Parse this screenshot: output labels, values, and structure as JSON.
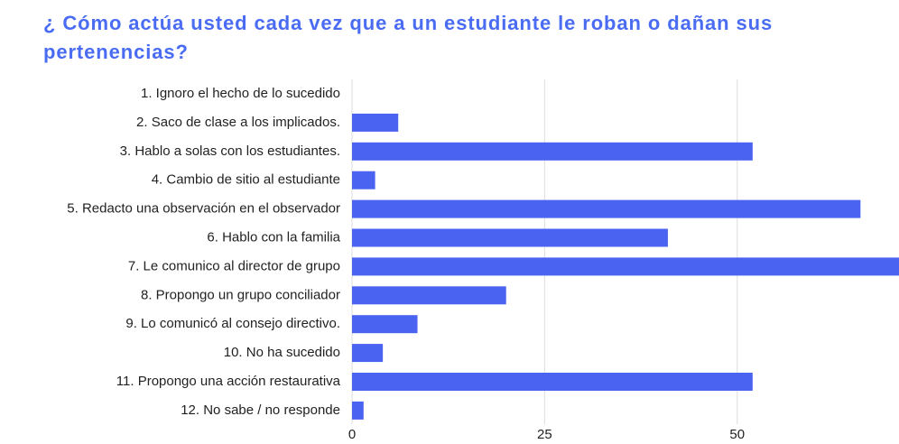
{
  "chart_data": {
    "type": "bar",
    "orientation": "horizontal",
    "title": "¿ Cómo actúa usted cada vez que a un estudiante le roban o dañan sus pertenencias?",
    "categories": [
      "1. Ignoro el hecho de lo sucedido",
      "2. Saco de clase a los implicados.",
      "3. Hablo a solas con los estudiantes.",
      "4. Cambio de sitio al estudiante",
      "5. Redacto una observación en el observador",
      "6. Hablo con la familia",
      "7. Le comunico al director de grupo",
      "8. Propongo un grupo conciliador",
      "9. Lo comunicó al consejo directivo.",
      "10. No ha sucedido",
      "11. Propongo una acción restaurativa",
      "12. No sabe / no responde"
    ],
    "values": [
      0,
      6,
      52,
      3,
      66,
      41,
      71,
      20,
      8.5,
      4,
      52,
      1.5
    ],
    "color": "#4a63f0",
    "xlim": [
      0,
      71
    ],
    "xticks": [
      0,
      25,
      50
    ],
    "grid": true
  }
}
